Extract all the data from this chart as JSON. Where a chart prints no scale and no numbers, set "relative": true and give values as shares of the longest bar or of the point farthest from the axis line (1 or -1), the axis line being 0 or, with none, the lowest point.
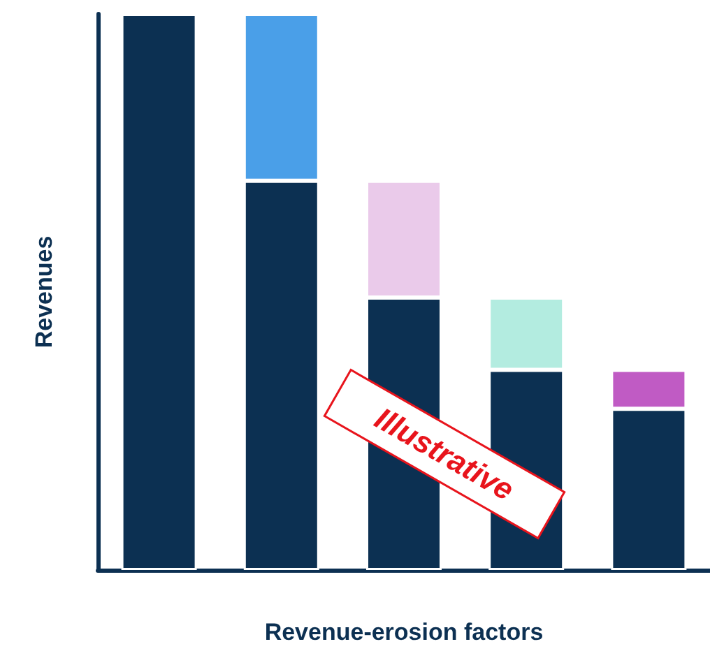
{
  "chart_data": {
    "type": "bar",
    "relative": true,
    "stacked": true,
    "xlabel": "Revenue-erosion factors",
    "ylabel": "Revenues",
    "categories": [
      null,
      null,
      null,
      null,
      null
    ],
    "series": [
      {
        "colors": [
          "#0c3052",
          "#0c3052",
          "#0c3052",
          "#0c3052",
          "#0c3052"
        ],
        "values": [
          1,
          0.7,
          0.49,
          0.36,
          0.29
        ]
      },
      {
        "colors": [
          "#4a9fe8",
          "#4a9fe8",
          "#eacaea",
          "#b3ece0",
          "#c05bc4"
        ],
        "values": [
          null,
          0.3,
          0.21,
          0.13,
          0.07
        ]
      }
    ],
    "annotations": [
      "Illustrative"
    ],
    "grid": false
  }
}
